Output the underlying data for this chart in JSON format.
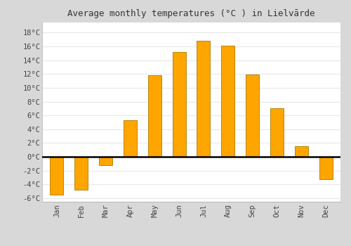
{
  "title": "Average monthly temperatures (°C ) in Lielvārde",
  "months": [
    "Jan",
    "Feb",
    "Mar",
    "Apr",
    "May",
    "Jun",
    "Jul",
    "Aug",
    "Sep",
    "Oct",
    "Nov",
    "Dec"
  ],
  "values": [
    -5.5,
    -4.8,
    -1.2,
    5.3,
    11.8,
    15.2,
    16.8,
    16.1,
    11.9,
    7.0,
    1.5,
    -3.2
  ],
  "bar_color_top": "#FFB820",
  "bar_color_bottom": "#FFA500",
  "bar_edge_color": "#B8860B",
  "plot_bg_color": "#ffffff",
  "fig_bg_color": "#d8d8d8",
  "grid_color": "#e8e8e8",
  "zero_line_color": "#000000",
  "ylim": [
    -6.5,
    19.5
  ],
  "yticks": [
    -6,
    -4,
    -2,
    0,
    2,
    4,
    6,
    8,
    10,
    12,
    14,
    16,
    18
  ],
  "title_fontsize": 9,
  "tick_fontsize": 7.5,
  "bar_width": 0.55
}
